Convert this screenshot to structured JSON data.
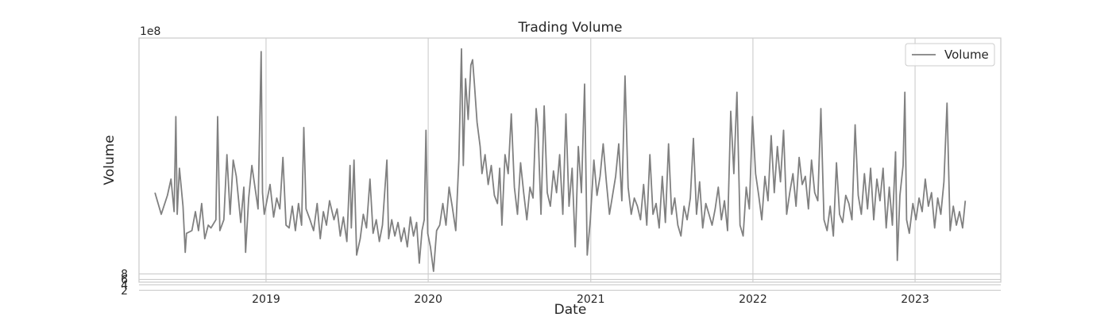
{
  "chart_data": {
    "type": "line",
    "title": "Trading Volume",
    "xlabel": "Date",
    "ylabel": "Volume",
    "y_offset_label": "1e8",
    "y_scale_factor": 100000000,
    "xlim": [
      "2018-03-21",
      "2023-07-13"
    ],
    "ylim": [
      5,
      95
    ],
    "x_ticks": [
      "2019-01-01",
      "2020-01-01",
      "2021-01-01",
      "2022-01-01",
      "2023-01-01"
    ],
    "x_tick_labels": [
      "2019",
      "2020",
      "2021",
      "2022",
      "2023"
    ],
    "y_ticks": [
      2,
      4,
      6,
      8
    ],
    "y_tick_labels": [
      "2",
      "4",
      "6",
      "8"
    ],
    "grid": true,
    "legend_position": "top-right",
    "series": [
      {
        "name": "Volume",
        "color": "#808080",
        "points": [
          [
            "2018-04-26",
            38
          ],
          [
            "2018-05-10",
            30
          ],
          [
            "2018-05-24",
            37
          ],
          [
            "2018-06-01",
            43
          ],
          [
            "2018-06-08",
            31
          ],
          [
            "2018-06-12",
            66
          ],
          [
            "2018-06-15",
            30
          ],
          [
            "2018-06-20",
            47
          ],
          [
            "2018-06-28",
            33
          ],
          [
            "2018-07-03",
            16
          ],
          [
            "2018-07-06",
            23
          ],
          [
            "2018-07-18",
            24
          ],
          [
            "2018-07-26",
            31
          ],
          [
            "2018-08-02",
            24
          ],
          [
            "2018-08-09",
            34
          ],
          [
            "2018-08-16",
            21
          ],
          [
            "2018-08-24",
            26
          ],
          [
            "2018-08-30",
            25
          ],
          [
            "2018-09-10",
            28
          ],
          [
            "2018-09-14",
            66
          ],
          [
            "2018-09-19",
            24
          ],
          [
            "2018-09-28",
            28
          ],
          [
            "2018-10-05",
            52
          ],
          [
            "2018-10-12",
            30
          ],
          [
            "2018-10-19",
            50
          ],
          [
            "2018-10-26",
            44
          ],
          [
            "2018-11-05",
            27
          ],
          [
            "2018-11-12",
            40
          ],
          [
            "2018-11-16",
            16
          ],
          [
            "2018-11-23",
            36
          ],
          [
            "2018-11-30",
            48
          ],
          [
            "2018-12-07",
            40
          ],
          [
            "2018-12-14",
            32
          ],
          [
            "2018-12-21",
            90
          ],
          [
            "2018-12-24",
            38
          ],
          [
            "2018-12-28",
            30
          ],
          [
            "2019-01-10",
            41
          ],
          [
            "2019-01-18",
            29
          ],
          [
            "2019-01-25",
            36
          ],
          [
            "2019-02-01",
            32
          ],
          [
            "2019-02-08",
            51
          ],
          [
            "2019-02-15",
            26
          ],
          [
            "2019-02-22",
            25
          ],
          [
            "2019-03-01",
            33
          ],
          [
            "2019-03-08",
            24
          ],
          [
            "2019-03-15",
            34
          ],
          [
            "2019-03-22",
            26
          ],
          [
            "2019-03-27",
            62
          ],
          [
            "2019-04-01",
            32
          ],
          [
            "2019-04-10",
            28
          ],
          [
            "2019-04-18",
            24
          ],
          [
            "2019-04-26",
            34
          ],
          [
            "2019-05-03",
            21
          ],
          [
            "2019-05-10",
            31
          ],
          [
            "2019-05-17",
            26
          ],
          [
            "2019-05-24",
            35
          ],
          [
            "2019-06-03",
            28
          ],
          [
            "2019-06-10",
            32
          ],
          [
            "2019-06-17",
            22
          ],
          [
            "2019-06-24",
            29
          ],
          [
            "2019-07-02",
            20
          ],
          [
            "2019-07-09",
            48
          ],
          [
            "2019-07-12",
            25
          ],
          [
            "2019-07-18",
            50
          ],
          [
            "2019-07-24",
            15
          ],
          [
            "2019-08-01",
            21
          ],
          [
            "2019-08-08",
            30
          ],
          [
            "2019-08-15",
            25
          ],
          [
            "2019-08-23",
            43
          ],
          [
            "2019-08-30",
            23
          ],
          [
            "2019-09-06",
            28
          ],
          [
            "2019-09-13",
            20
          ],
          [
            "2019-09-20",
            26
          ],
          [
            "2019-09-30",
            50
          ],
          [
            "2019-10-04",
            21
          ],
          [
            "2019-10-11",
            28
          ],
          [
            "2019-10-18",
            22
          ],
          [
            "2019-10-25",
            27
          ],
          [
            "2019-11-01",
            20
          ],
          [
            "2019-11-08",
            25
          ],
          [
            "2019-11-15",
            18
          ],
          [
            "2019-11-22",
            29
          ],
          [
            "2019-11-29",
            22
          ],
          [
            "2019-12-06",
            27
          ],
          [
            "2019-12-12",
            12
          ],
          [
            "2019-12-18",
            24
          ],
          [
            "2019-12-23",
            28
          ],
          [
            "2019-12-27",
            61
          ],
          [
            "2019-12-31",
            23
          ],
          [
            "2020-01-06",
            18
          ],
          [
            "2020-01-13",
            9
          ],
          [
            "2020-01-20",
            24
          ],
          [
            "2020-01-27",
            26
          ],
          [
            "2020-02-03",
            34
          ],
          [
            "2020-02-10",
            26
          ],
          [
            "2020-02-17",
            40
          ],
          [
            "2020-02-24",
            33
          ],
          [
            "2020-03-03",
            24
          ],
          [
            "2020-03-10",
            50
          ],
          [
            "2020-03-16",
            91
          ],
          [
            "2020-03-20",
            48
          ],
          [
            "2020-03-25",
            80
          ],
          [
            "2020-03-31",
            65
          ],
          [
            "2020-04-06",
            85
          ],
          [
            "2020-04-10",
            87
          ],
          [
            "2020-04-14",
            78
          ],
          [
            "2020-04-20",
            64
          ],
          [
            "2020-04-27",
            55
          ],
          [
            "2020-05-01",
            45
          ],
          [
            "2020-05-08",
            52
          ],
          [
            "2020-05-15",
            41
          ],
          [
            "2020-05-22",
            48
          ],
          [
            "2020-05-29",
            37
          ],
          [
            "2020-06-05",
            34
          ],
          [
            "2020-06-10",
            47
          ],
          [
            "2020-06-15",
            26
          ],
          [
            "2020-06-22",
            52
          ],
          [
            "2020-06-29",
            45
          ],
          [
            "2020-07-06",
            67
          ],
          [
            "2020-07-13",
            40
          ],
          [
            "2020-07-20",
            30
          ],
          [
            "2020-07-27",
            49
          ],
          [
            "2020-08-03",
            38
          ],
          [
            "2020-08-10",
            28
          ],
          [
            "2020-08-17",
            40
          ],
          [
            "2020-08-24",
            36
          ],
          [
            "2020-08-31",
            69
          ],
          [
            "2020-09-04",
            62
          ],
          [
            "2020-09-11",
            30
          ],
          [
            "2020-09-18",
            70
          ],
          [
            "2020-09-25",
            38
          ],
          [
            "2020-10-02",
            33
          ],
          [
            "2020-10-09",
            46
          ],
          [
            "2020-10-16",
            38
          ],
          [
            "2020-10-23",
            52
          ],
          [
            "2020-10-30",
            30
          ],
          [
            "2020-11-06",
            67
          ],
          [
            "2020-11-13",
            33
          ],
          [
            "2020-11-20",
            47
          ],
          [
            "2020-11-27",
            18
          ],
          [
            "2020-12-04",
            55
          ],
          [
            "2020-12-11",
            38
          ],
          [
            "2020-12-18",
            78
          ],
          [
            "2020-12-24",
            15
          ],
          [
            "2020-12-31",
            28
          ],
          [
            "2021-01-08",
            50
          ],
          [
            "2021-01-15",
            37
          ],
          [
            "2021-01-22",
            44
          ],
          [
            "2021-01-29",
            56
          ],
          [
            "2021-02-05",
            42
          ],
          [
            "2021-02-12",
            30
          ],
          [
            "2021-02-19",
            37
          ],
          [
            "2021-02-26",
            44
          ],
          [
            "2021-03-05",
            56
          ],
          [
            "2021-03-12",
            35
          ],
          [
            "2021-03-19",
            81
          ],
          [
            "2021-03-26",
            40
          ],
          [
            "2021-04-02",
            30
          ],
          [
            "2021-04-09",
            36
          ],
          [
            "2021-04-16",
            33
          ],
          [
            "2021-04-23",
            28
          ],
          [
            "2021-04-30",
            41
          ],
          [
            "2021-05-07",
            26
          ],
          [
            "2021-05-14",
            52
          ],
          [
            "2021-05-21",
            30
          ],
          [
            "2021-05-28",
            34
          ],
          [
            "2021-06-04",
            25
          ],
          [
            "2021-06-11",
            44
          ],
          [
            "2021-06-18",
            27
          ],
          [
            "2021-06-25",
            56
          ],
          [
            "2021-07-02",
            30
          ],
          [
            "2021-07-09",
            36
          ],
          [
            "2021-07-16",
            26
          ],
          [
            "2021-07-23",
            22
          ],
          [
            "2021-07-30",
            33
          ],
          [
            "2021-08-06",
            28
          ],
          [
            "2021-08-13",
            36
          ],
          [
            "2021-08-20",
            58
          ],
          [
            "2021-08-27",
            30
          ],
          [
            "2021-09-03",
            42
          ],
          [
            "2021-09-10",
            25
          ],
          [
            "2021-09-17",
            34
          ],
          [
            "2021-09-24",
            30
          ],
          [
            "2021-10-01",
            26
          ],
          [
            "2021-10-08",
            32
          ],
          [
            "2021-10-15",
            40
          ],
          [
            "2021-10-22",
            28
          ],
          [
            "2021-10-29",
            35
          ],
          [
            "2021-11-05",
            24
          ],
          [
            "2021-11-12",
            68
          ],
          [
            "2021-11-19",
            45
          ],
          [
            "2021-11-26",
            75
          ],
          [
            "2021-12-03",
            26
          ],
          [
            "2021-12-10",
            22
          ],
          [
            "2021-12-17",
            40
          ],
          [
            "2021-12-24",
            32
          ],
          [
            "2021-12-31",
            66
          ],
          [
            "2022-01-07",
            45
          ],
          [
            "2022-01-14",
            37
          ],
          [
            "2022-01-21",
            28
          ],
          [
            "2022-01-28",
            44
          ],
          [
            "2022-02-04",
            35
          ],
          [
            "2022-02-11",
            59
          ],
          [
            "2022-02-18",
            38
          ],
          [
            "2022-02-25",
            55
          ],
          [
            "2022-03-04",
            42
          ],
          [
            "2022-03-11",
            61
          ],
          [
            "2022-03-18",
            30
          ],
          [
            "2022-03-25",
            38
          ],
          [
            "2022-04-01",
            45
          ],
          [
            "2022-04-08",
            33
          ],
          [
            "2022-04-15",
            51
          ],
          [
            "2022-04-22",
            41
          ],
          [
            "2022-04-29",
            44
          ],
          [
            "2022-05-06",
            32
          ],
          [
            "2022-05-13",
            50
          ],
          [
            "2022-05-20",
            38
          ],
          [
            "2022-05-27",
            35
          ],
          [
            "2022-06-03",
            69
          ],
          [
            "2022-06-10",
            28
          ],
          [
            "2022-06-17",
            24
          ],
          [
            "2022-06-24",
            33
          ],
          [
            "2022-07-01",
            22
          ],
          [
            "2022-07-08",
            49
          ],
          [
            "2022-07-15",
            30
          ],
          [
            "2022-07-22",
            27
          ],
          [
            "2022-07-29",
            37
          ],
          [
            "2022-08-05",
            34
          ],
          [
            "2022-08-12",
            28
          ],
          [
            "2022-08-19",
            63
          ],
          [
            "2022-08-26",
            37
          ],
          [
            "2022-09-02",
            30
          ],
          [
            "2022-09-09",
            45
          ],
          [
            "2022-09-16",
            32
          ],
          [
            "2022-09-23",
            47
          ],
          [
            "2022-09-30",
            28
          ],
          [
            "2022-10-07",
            43
          ],
          [
            "2022-10-14",
            35
          ],
          [
            "2022-10-21",
            47
          ],
          [
            "2022-10-28",
            25
          ],
          [
            "2022-11-04",
            40
          ],
          [
            "2022-11-11",
            26
          ],
          [
            "2022-11-18",
            53
          ],
          [
            "2022-11-22",
            13
          ],
          [
            "2022-11-28",
            37
          ],
          [
            "2022-12-05",
            48
          ],
          [
            "2022-12-09",
            75
          ],
          [
            "2022-12-13",
            28
          ],
          [
            "2022-12-19",
            23
          ],
          [
            "2022-12-27",
            34
          ],
          [
            "2023-01-03",
            28
          ],
          [
            "2023-01-10",
            36
          ],
          [
            "2023-01-17",
            31
          ],
          [
            "2023-01-24",
            43
          ],
          [
            "2023-01-31",
            33
          ],
          [
            "2023-02-07",
            38
          ],
          [
            "2023-02-14",
            25
          ],
          [
            "2023-02-21",
            36
          ],
          [
            "2023-02-28",
            30
          ],
          [
            "2023-03-07",
            42
          ],
          [
            "2023-03-14",
            71
          ],
          [
            "2023-03-21",
            24
          ],
          [
            "2023-03-28",
            33
          ],
          [
            "2023-04-04",
            26
          ],
          [
            "2023-04-11",
            31
          ],
          [
            "2023-04-18",
            25
          ],
          [
            "2023-04-24",
            35
          ]
        ]
      }
    ]
  }
}
